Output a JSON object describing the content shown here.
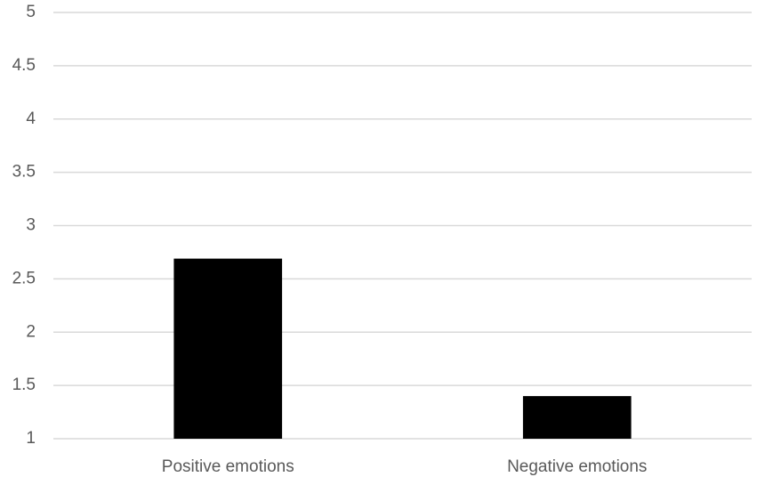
{
  "chart_data": {
    "type": "bar",
    "categories": [
      "Positive emotions",
      "Negative emotions"
    ],
    "values": [
      2.69,
      1.4
    ],
    "color": "#000000",
    "ylim": [
      1,
      5
    ],
    "yticks": [
      1,
      1.5,
      2,
      2.5,
      3,
      3.5,
      4,
      4.5,
      5
    ],
    "grid": true
  }
}
